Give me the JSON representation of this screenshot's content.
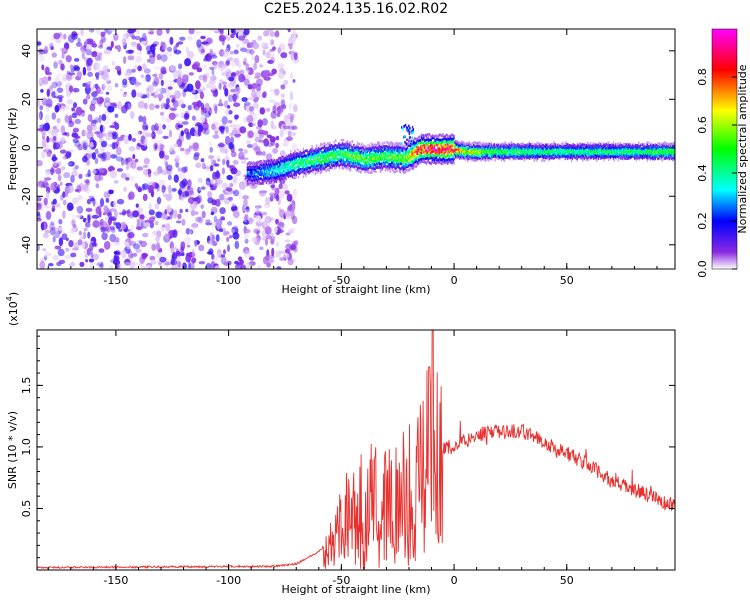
{
  "title": "C2E5.2024.135.16.02.R02",
  "chart_data": [
    {
      "type": "heatmap",
      "xlabel": "Height of straight line (km)",
      "ylabel": "Frequency (Hz)",
      "xlim": [
        -185,
        98
      ],
      "ylim": [
        -50,
        49
      ],
      "xticks": [
        -150,
        -100,
        -50,
        0,
        50
      ],
      "yticks": [
        -40,
        -20,
        0,
        20,
        40
      ],
      "colorbar": {
        "label": "Normalized spectral amplitude",
        "range": [
          0,
          1
        ],
        "ticks": [
          0.0,
          0.2,
          0.4,
          0.6,
          0.8
        ],
        "colormap": [
          "#ffffff",
          "#8a2be2",
          "#0000ff",
          "#00ffff",
          "#00ff00",
          "#ffff00",
          "#ff0000",
          "#ff00ff"
        ]
      },
      "ridge": {
        "x": [
          -90,
          -80,
          -70,
          -60,
          -50,
          -40,
          -30,
          -22,
          -15,
          -5,
          0,
          5,
          10,
          20,
          40,
          60,
          80,
          95
        ],
        "y": [
          -10,
          -9,
          -6,
          -4,
          -2,
          -4,
          -3,
          -4,
          0,
          0,
          0,
          -1,
          -1,
          -1,
          -1,
          -1,
          -1,
          -1
        ],
        "amplitude": [
          0.25,
          0.35,
          0.45,
          0.5,
          0.5,
          0.55,
          0.5,
          0.6,
          0.9,
          0.95,
          0.9,
          0.65,
          0.65,
          0.5,
          0.45,
          0.45,
          0.45,
          0.55
        ]
      },
      "noise_extent_x": [
        -185,
        -75
      ]
    },
    {
      "type": "line",
      "xlabel": "Height of straight line (km)",
      "ylabel": "SNR (10 * v/v)",
      "y_multiplier": "(x10",
      "y_multiplier_exp": "4",
      "y_multiplier_close": ")",
      "xlim": [
        -185,
        98
      ],
      "ylim": [
        0,
        1.95
      ],
      "xticks": [
        -150,
        -100,
        -50,
        0,
        50
      ],
      "yticks": [
        0.5,
        1.0,
        1.5
      ],
      "color": "#e8312e",
      "envelope": {
        "x": [
          -185,
          -80,
          -70,
          -60,
          -55,
          -50,
          -45,
          -40,
          -35,
          -30,
          -25,
          -20,
          -15,
          -12,
          -10,
          -8,
          -5,
          0,
          10,
          20,
          30,
          35,
          40,
          50,
          60,
          70,
          80,
          90,
          98
        ],
        "y": [
          0.02,
          0.03,
          0.05,
          0.15,
          0.25,
          0.45,
          0.55,
          0.6,
          0.7,
          0.65,
          0.75,
          0.8,
          0.9,
          1.15,
          1.3,
          1.1,
          1.0,
          1.0,
          1.1,
          1.12,
          1.13,
          1.1,
          1.03,
          0.95,
          0.85,
          0.72,
          0.65,
          0.58,
          0.53
        ]
      }
    }
  ]
}
